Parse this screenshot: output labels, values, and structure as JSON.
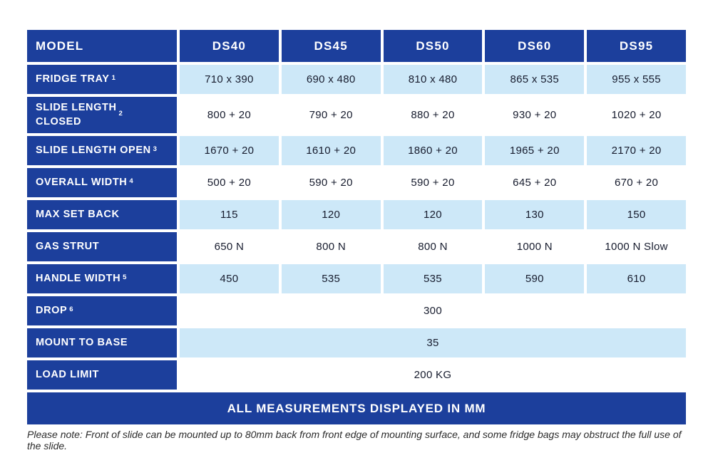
{
  "colors": {
    "blue": "#1c3f9c",
    "light_blue": "#cde8f8",
    "text_dark": "#171c2e"
  },
  "table": {
    "header": {
      "model_label": "MODEL",
      "columns": [
        "DS40",
        "DS45",
        "DS50",
        "DS60",
        "DS95"
      ]
    },
    "rows": [
      {
        "label": "FRIDGE TRAY",
        "sup": "1",
        "values": [
          "710 x 390",
          "690 x 480",
          "810 x 480",
          "865 x 535",
          "955 x 555"
        ],
        "shade": "blue"
      },
      {
        "label": "SLIDE LENGTH\nCLOSED",
        "sup": "2",
        "values": [
          "800 + 20",
          "790 + 20",
          "880 + 20",
          "930 + 20",
          "1020 + 20"
        ],
        "shade": "white"
      },
      {
        "label": "SLIDE LENGTH OPEN",
        "sup": "3",
        "values": [
          "1670 + 20",
          "1610 + 20",
          "1860 + 20",
          "1965 + 20",
          "2170 + 20"
        ],
        "shade": "blue"
      },
      {
        "label": "OVERALL WIDTH",
        "sup": "4",
        "values": [
          "500 + 20",
          "590 + 20",
          "590 + 20",
          "645 + 20",
          "670 + 20"
        ],
        "shade": "white"
      },
      {
        "label": "MAX SET BACK",
        "sup": "",
        "values": [
          "115",
          "120",
          "120",
          "130",
          "150"
        ],
        "shade": "blue"
      },
      {
        "label": "GAS STRUT",
        "sup": "",
        "values": [
          "650 N",
          "800 N",
          "800 N",
          "1000 N",
          "1000 N Slow"
        ],
        "shade": "white"
      },
      {
        "label": "HANDLE WIDTH",
        "sup": "5",
        "values": [
          "450",
          "535",
          "535",
          "590",
          "610"
        ],
        "shade": "blue"
      },
      {
        "label": "DROP",
        "sup": "6",
        "merged_value": "300",
        "shade": "white"
      },
      {
        "label": "MOUNT TO BASE",
        "sup": "",
        "merged_value": "35",
        "shade": "blue"
      },
      {
        "label": "LOAD LIMIT",
        "sup": "",
        "merged_value": "200 KG",
        "shade": "white"
      }
    ],
    "footer": "ALL MEASUREMENTS DISPLAYED IN MM"
  },
  "note": "Please note: Front of slide can be mounted up to 80mm back from front edge of mounting surface, and some fridge bags may obstruct the full use of the slide."
}
